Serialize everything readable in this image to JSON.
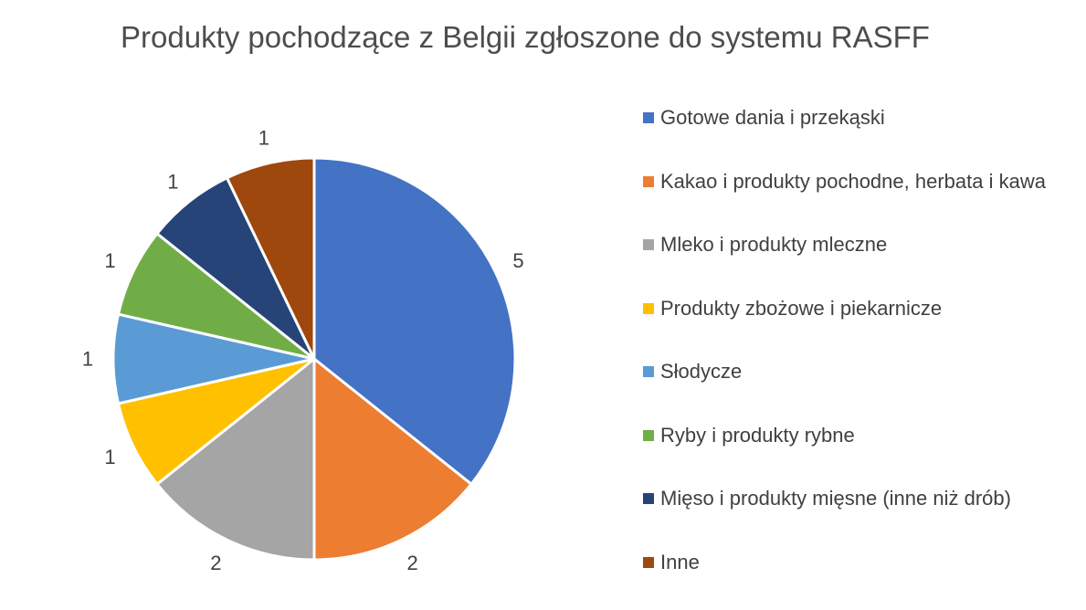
{
  "chart_data": {
    "type": "pie",
    "title": "Produkty pochodzące z Belgii zgłoszone do systemu RASFF",
    "categories": [
      "Gotowe dania i przekąski",
      "Kakao i produkty pochodne, herbata i kawa",
      "Mleko i produkty mleczne",
      "Produkty zbożowe i piekarnicze",
      "Słodycze",
      "Ryby i produkty rybne",
      "Mięso i produkty mięsne (inne niż drób)",
      "Inne"
    ],
    "values": [
      5,
      2,
      2,
      1,
      1,
      1,
      1,
      1
    ],
    "colors": [
      "#4472c4",
      "#ed7d31",
      "#a5a5a5",
      "#ffc000",
      "#5b9bd5",
      "#70ad47",
      "#264478",
      "#9e480e"
    ],
    "data_labels": [
      "5",
      "2",
      "2",
      "1",
      "1",
      "1",
      "1",
      "1"
    ],
    "legend_position": "right"
  }
}
